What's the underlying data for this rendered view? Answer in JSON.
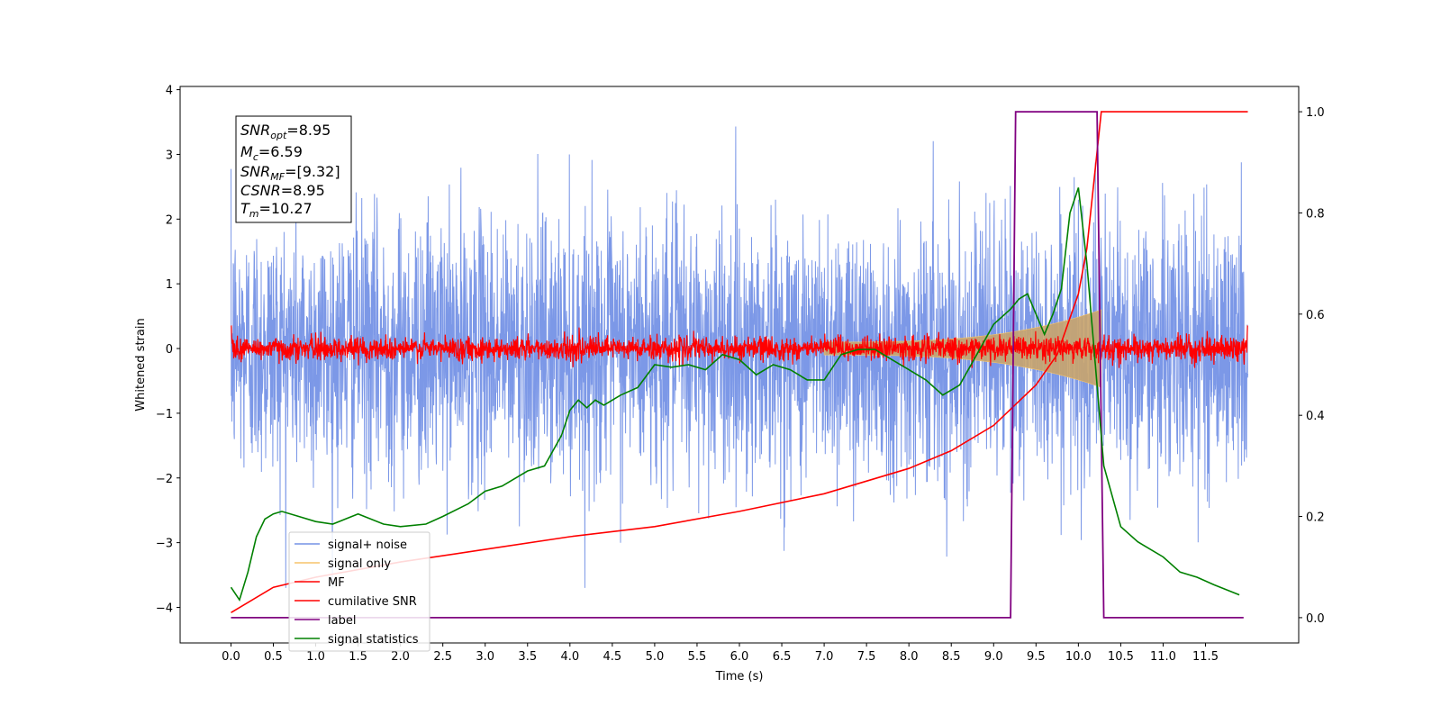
{
  "chart_data": {
    "type": "line",
    "xlabel": "Time (s)",
    "ylabel": "Whitened strain",
    "xlim": [
      -0.6,
      12.6
    ],
    "ylim": [
      -4.55,
      4.05
    ],
    "ylim_right": [
      -0.05,
      1.05
    ],
    "x_ticks": [
      "0.0",
      "0.5",
      "1.0",
      "1.5",
      "2.0",
      "2.5",
      "3.0",
      "3.5",
      "4.0",
      "4.5",
      "5.0",
      "5.5",
      "6.0",
      "6.5",
      "7.0",
      "7.5",
      "8.0",
      "8.5",
      "9.0",
      "9.5",
      "10.0",
      "10.5",
      "11.0",
      "11.5"
    ],
    "y_ticks_left": [
      "4",
      "3",
      "2",
      "1",
      "0",
      "−1",
      "−2",
      "−3",
      "−4"
    ],
    "y_ticks_right": [
      "1.0",
      "0.8",
      "0.6",
      "0.4",
      "0.2",
      "0.0"
    ],
    "annotation": {
      "snr_opt_base": "SNR",
      "snr_opt_sub": "opt",
      "snr_opt_value": "=8.95",
      "mc_base": "M",
      "mc_sub": "c",
      "mc_value": "=6.59",
      "snr_mf_base": "SNR",
      "snr_mf_sub": "MF",
      "snr_mf_value": "=[9.32]",
      "csnr_base": "CSNR",
      "csnr_value": "=8.95",
      "tm_base": "T",
      "tm_sub": "m",
      "tm_value": "=10.27"
    },
    "legend": {
      "placement": "lower-left",
      "entries": [
        {
          "label": "signal+ noise",
          "color": "#7592e6"
        },
        {
          "label": "signal only",
          "color": "#f5c46a"
        },
        {
          "label": "MF",
          "color": "#ff0000"
        },
        {
          "label": "cumilative SNR",
          "color": "#ff0000"
        },
        {
          "label": "label",
          "color": "#800080"
        },
        {
          "label": "signal statistics",
          "color": "#008000"
        }
      ]
    },
    "series": [
      {
        "name": "signal+ noise",
        "axis": "left",
        "color": "#7592e6",
        "t_range": [
          0,
          12.0
        ],
        "center": 0,
        "approx_sd": 1.0,
        "range": [
          -3.7,
          3.65
        ]
      },
      {
        "name": "signal only",
        "axis": "left",
        "color": "#f5c46a",
        "t_range": [
          7.0,
          10.27
        ],
        "envelope_start": 0.1,
        "envelope_end": 0.6
      },
      {
        "name": "MF",
        "axis": "left",
        "color": "#ff0000",
        "t_range": [
          0,
          12.0
        ],
        "center": 0,
        "band": 0.2
      },
      {
        "name": "cumilative SNR",
        "axis": "right",
        "x": [
          0,
          0.5,
          1.0,
          2.0,
          3.0,
          4.0,
          5.0,
          6.0,
          7.0,
          8.0,
          8.5,
          9.0,
          9.5,
          9.75,
          10.0,
          10.1,
          10.27,
          10.3,
          12.0
        ],
        "y": [
          0.01,
          0.06,
          0.08,
          0.11,
          0.135,
          0.16,
          0.18,
          0.21,
          0.245,
          0.295,
          0.33,
          0.38,
          0.46,
          0.52,
          0.64,
          0.73,
          1.0,
          1.0,
          1.0
        ]
      },
      {
        "name": "label",
        "axis": "right",
        "x": [
          0,
          9.2,
          9.26,
          10.22,
          10.3,
          11.95
        ],
        "y": [
          0,
          0,
          1.0,
          1.0,
          0,
          0
        ]
      },
      {
        "name": "signal statistics",
        "axis": "right",
        "x": [
          0,
          0.1,
          0.2,
          0.3,
          0.4,
          0.5,
          0.6,
          0.8,
          1.0,
          1.2,
          1.5,
          1.8,
          2.0,
          2.3,
          2.5,
          2.8,
          3.0,
          3.2,
          3.5,
          3.7,
          3.9,
          4.0,
          4.1,
          4.2,
          4.3,
          4.4,
          4.6,
          4.8,
          5.0,
          5.2,
          5.4,
          5.6,
          5.8,
          6.0,
          6.2,
          6.4,
          6.6,
          6.8,
          7.0,
          7.2,
          7.4,
          7.6,
          7.8,
          8.0,
          8.2,
          8.4,
          8.6,
          8.8,
          9.0,
          9.2,
          9.3,
          9.4,
          9.5,
          9.6,
          9.7,
          9.8,
          9.9,
          10.0,
          10.1,
          10.2,
          10.3,
          10.5,
          10.7,
          11.0,
          11.2,
          11.4,
          11.6,
          11.9
        ],
        "y": [
          0.06,
          0.035,
          0.09,
          0.16,
          0.195,
          0.205,
          0.21,
          0.2,
          0.19,
          0.185,
          0.205,
          0.185,
          0.18,
          0.185,
          0.2,
          0.225,
          0.25,
          0.26,
          0.29,
          0.3,
          0.36,
          0.41,
          0.43,
          0.415,
          0.43,
          0.42,
          0.44,
          0.455,
          0.5,
          0.495,
          0.5,
          0.49,
          0.52,
          0.51,
          0.48,
          0.5,
          0.49,
          0.47,
          0.47,
          0.52,
          0.53,
          0.53,
          0.51,
          0.49,
          0.47,
          0.44,
          0.46,
          0.52,
          0.58,
          0.61,
          0.63,
          0.64,
          0.6,
          0.56,
          0.6,
          0.65,
          0.8,
          0.85,
          0.7,
          0.5,
          0.3,
          0.18,
          0.15,
          0.12,
          0.09,
          0.08,
          0.065,
          0.045
        ]
      }
    ]
  }
}
